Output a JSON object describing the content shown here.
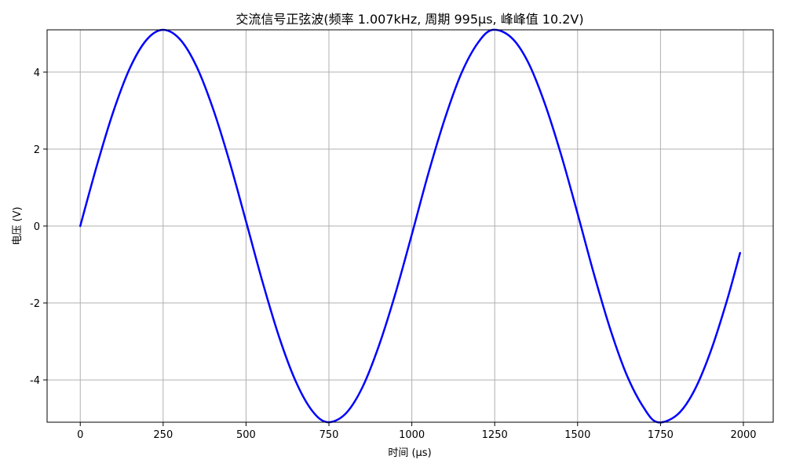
{
  "chart_data": {
    "type": "line",
    "title": "交流信号正弦波(频率 1.007kHz, 周期 995μs, 峰峰值 10.2V)",
    "xlabel": "时间 (μs)",
    "ylabel": "电压 (V)",
    "xlim": [
      -100,
      2090
    ],
    "ylim": [
      -5.1,
      5.1
    ],
    "xticks": [
      0,
      250,
      500,
      750,
      1000,
      1250,
      1500,
      1750,
      2000
    ],
    "yticks": [
      -4,
      -2,
      0,
      2,
      4
    ],
    "xtick_labels": [
      "0",
      "250",
      "500",
      "750",
      "1000",
      "1250",
      "1500",
      "1750",
      "2000"
    ],
    "ytick_labels": [
      "-4",
      "-2",
      "0",
      "2",
      "4"
    ],
    "grid": true,
    "line_color": "#0000ff",
    "series": [
      {
        "x": [
          0,
          50,
          100,
          150,
          200,
          249,
          300,
          350,
          400,
          450,
          500,
          550,
          600,
          650,
          700,
          746,
          800,
          850,
          900,
          950,
          1000,
          1050,
          1100,
          1150,
          1200,
          1244,
          1300,
          1350,
          1400,
          1450,
          1500,
          1550,
          1600,
          1650,
          1700,
          1741,
          1800,
          1850,
          1900,
          1950,
          1990
        ],
        "y": [
          0,
          1.57,
          2.98,
          4.11,
          4.84,
          5.1,
          4.86,
          4.16,
          3.06,
          1.68,
          0.12,
          -1.46,
          -2.89,
          -4.04,
          -4.81,
          -5.1,
          -4.88,
          -4.21,
          -3.13,
          -1.77,
          -0.22,
          1.37,
          2.8,
          3.98,
          4.77,
          5.1,
          4.9,
          4.27,
          3.21,
          1.86,
          0.32,
          -1.27,
          -2.72,
          -3.91,
          -4.73,
          -5.1,
          -4.91,
          -4.31,
          -3.29,
          -1.95,
          -0.7
        ]
      }
    ]
  }
}
